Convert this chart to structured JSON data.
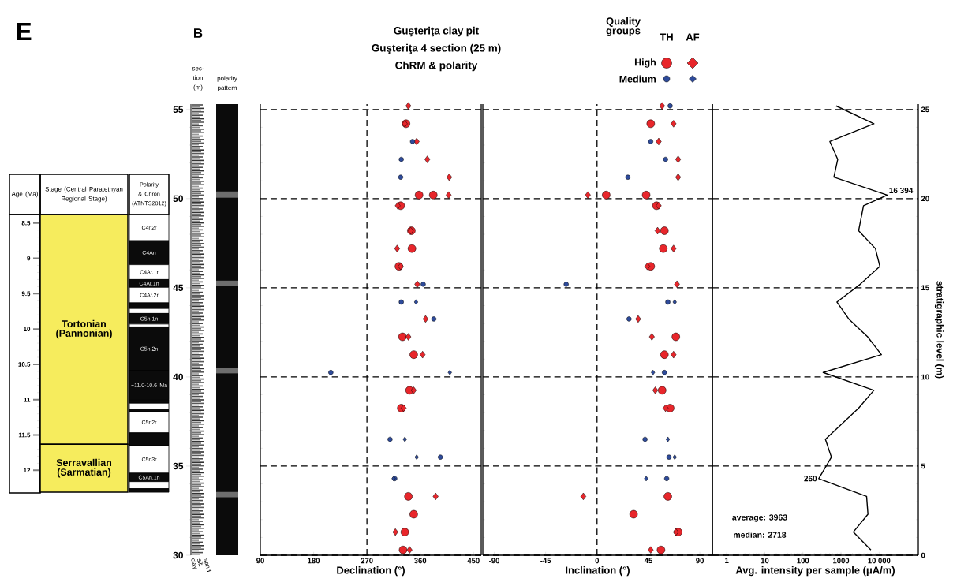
{
  "chart_data": [
    {
      "type": "bar",
      "ylabel": "Age (Ma)",
      "annotations": [
        "E"
      ],
      "categories": [
        "Stage (Central Paratethyan Regional Stage)",
        "Polarity & Chron (ATNTS2012)"
      ],
      "ylim": [
        12.32,
        8.38
      ],
      "yticks": [
        8.5,
        9,
        9.5,
        10,
        10.5,
        11,
        11.5,
        12
      ],
      "series": [
        {
          "name": "Tortonian (Pannonian)",
          "color": "#f6ec5d",
          "values": [
            3.25,
            null
          ],
          "base": [
            8.38,
            null
          ]
        },
        {
          "name": "Serravallian (Sarmatian)",
          "color": "#f6ec5d",
          "values": [
            0.68,
            null
          ],
          "base": [
            11.63,
            null
          ]
        },
        {
          "name": "C4r.2r",
          "color": "#ffffff",
          "values": [
            null,
            0.37
          ],
          "base": [
            null,
            8.38
          ]
        },
        {
          "name": "C4An",
          "color": "#0b0b0b",
          "values": [
            null,
            0.34
          ],
          "base": [
            null,
            8.75
          ]
        },
        {
          "name": "C4Ar.1r",
          "color": "#ffffff",
          "values": [
            null,
            0.21
          ],
          "base": [
            null,
            9.09
          ]
        },
        {
          "name": "C4Ar.1n",
          "color": "#0b0b0b",
          "values": [
            null,
            0.11
          ],
          "base": [
            null,
            9.3
          ]
        },
        {
          "name": "C4Ar.2r",
          "color": "#ffffff",
          "values": [
            null,
            0.22
          ],
          "base": [
            null,
            9.41
          ]
        },
        {
          "color": "#0b0b0b",
          "values": [
            null,
            0.08
          ],
          "base": [
            null,
            9.63
          ]
        },
        {
          "color": "#ffffff",
          "values": [
            null,
            0.07
          ],
          "base": [
            null,
            9.71
          ]
        },
        {
          "name": "C5n.1n",
          "color": "#0b0b0b",
          "values": [
            null,
            0.15
          ],
          "base": [
            null,
            9.78
          ]
        },
        {
          "color": "#ffffff",
          "values": [
            null,
            0.04
          ],
          "base": [
            null,
            9.93
          ]
        },
        {
          "name": "C5n.2n",
          "color": "#0b0b0b",
          "values": [
            null,
            0.62
          ],
          "base": [
            null,
            9.97
          ]
        },
        {
          "name": "~11.0-10.6 Ma",
          "color": "#0b0b0b",
          "values": [
            null,
            0.41
          ],
          "base": [
            null,
            10.59
          ]
        },
        {
          "color": "#0b0b0b",
          "values": [
            null,
            0.05
          ],
          "base": [
            null,
            11.0
          ]
        },
        {
          "color": "#ffffff",
          "values": [
            null,
            0.09
          ],
          "base": [
            null,
            11.05
          ]
        },
        {
          "color": "#0b0b0b",
          "values": [
            null,
            0.03
          ],
          "base": [
            null,
            11.14
          ]
        },
        {
          "name": "C5r.2r",
          "color": "#ffffff",
          "values": [
            null,
            0.3
          ],
          "base": [
            null,
            11.17
          ]
        },
        {
          "color": "#0b0b0b",
          "values": [
            null,
            0.18
          ],
          "base": [
            null,
            11.47
          ]
        },
        {
          "name": "C5r.3r",
          "color": "#ffffff",
          "values": [
            null,
            0.39
          ],
          "base": [
            null,
            11.65
          ]
        },
        {
          "name": "C5An.1n",
          "color": "#0b0b0b",
          "values": [
            null,
            0.12
          ],
          "base": [
            null,
            12.04
          ]
        },
        {
          "color": "#ffffff",
          "values": [
            null,
            0.1
          ],
          "base": [
            null,
            12.16
          ]
        },
        {
          "color": "#0b0b0b",
          "values": [
            null,
            0.05
          ],
          "base": [
            null,
            12.26
          ]
        }
      ]
    },
    {
      "type": "bar",
      "title": "polarity pattern",
      "ylabel": "sec-tion (m)",
      "annotations": [
        "B",
        "clay",
        "silt",
        "sand"
      ],
      "categories": [
        null
      ],
      "ylim": [
        30,
        55.3
      ],
      "yticks": [
        30,
        35,
        40,
        45,
        50,
        55
      ],
      "series": [
        {
          "color": "#0b0b0b",
          "values": [
            25.3
          ],
          "base": [
            30
          ]
        },
        {
          "color": "#6e6e6e",
          "values": [
            0.3
          ],
          "base": [
            33.25
          ]
        },
        {
          "color": "#6e6e6e",
          "values": [
            0.3
          ],
          "base": [
            40.2
          ]
        },
        {
          "color": "#6e6e6e",
          "values": [
            0.3
          ],
          "base": [
            45.1
          ]
        },
        {
          "color": "#6e6e6e",
          "values": [
            0.35
          ],
          "base": [
            50.05
          ]
        }
      ]
    },
    {
      "type": "scatter",
      "title": "Guşteriţa clay pit",
      "subtitle": "Guşteriţa 4 section (25 m)",
      "annotations": [
        "ChRM & polarity",
        "TH",
        "AF"
      ],
      "xlabel": "Declination (°)",
      "legend": "top right",
      "legend_title": "Quality groups",
      "xlim": [
        90,
        463
      ],
      "xticks": [
        90,
        180,
        270,
        360,
        450
      ],
      "ylim": [
        0,
        25.3
      ],
      "yticks": [
        0,
        5,
        10,
        15,
        20,
        25
      ],
      "tick_labels": "x",
      "grid": "y",
      "ref_lines": [
        {
          "axis": "x",
          "value": 270,
          "line_style": "dashed"
        }
      ],
      "series": [
        {
          "name": "High",
          "color": "#e8262b",
          "marker": "circle",
          "x": [
            336,
            358,
            382,
            327,
            345,
            346,
            324,
            330,
            349,
            342,
            328,
            340,
            349,
            334,
            331
          ],
          "values": [
            24.2,
            20.2,
            20.2,
            19.6,
            18.2,
            17.2,
            16.2,
            12.25,
            11.25,
            9.25,
            8.25,
            3.3,
            2.3,
            1.3,
            0.3
          ]
        },
        {
          "color": "#e8262b",
          "marker": "diamond",
          "x": [
            340,
            334,
            354,
            372,
            409,
            408,
            322,
            344,
            321,
            327,
            355,
            369,
            340,
            364,
            349,
            332,
            386,
            318,
            342
          ],
          "values": [
            25.2,
            24.2,
            23.2,
            22.2,
            21.2,
            20.2,
            19.6,
            18.2,
            17.2,
            16.2,
            15.2,
            13.25,
            12.25,
            11.25,
            9.25,
            8.25,
            3.3,
            1.3,
            0.3
          ]
        },
        {
          "name": "Medium",
          "color": "#2e4b9b",
          "marker": "circle",
          "x": [
            347,
            328,
            327,
            365,
            328,
            383,
            209,
            309,
            394,
            317
          ],
          "values": [
            23.2,
            22.2,
            21.2,
            15.2,
            14.2,
            13.25,
            10.25,
            6.5,
            5.5,
            4.3
          ]
        },
        {
          "color": "#2e4b9b",
          "marker": "diamond",
          "x": [
            353,
            410,
            334,
            354,
            315
          ],
          "values": [
            14.2,
            10.25,
            6.5,
            5.5,
            4.3
          ]
        }
      ]
    },
    {
      "type": "scatter",
      "xlabel": "Inclination (°)",
      "xlim": [
        -100,
        101
      ],
      "xticks": [
        -90,
        -45,
        0,
        45,
        90
      ],
      "ylim": [
        0,
        25.3
      ],
      "yticks": [
        0,
        5,
        10,
        15,
        20,
        25
      ],
      "tick_labels": "x",
      "grid": "y",
      "ref_lines": [
        {
          "axis": "x",
          "value": 0,
          "line_style": "dashed"
        }
      ],
      "series": [
        {
          "color": "#e8262b",
          "marker": "circle",
          "x": [
            47,
            8,
            43,
            52,
            59,
            58,
            47,
            69,
            59,
            57,
            64,
            62,
            32,
            71,
            56
          ],
          "values": [
            24.2,
            20.2,
            20.2,
            19.6,
            18.2,
            17.2,
            16.2,
            12.25,
            11.25,
            9.25,
            8.25,
            3.3,
            2.3,
            1.3,
            0.3
          ]
        },
        {
          "color": "#e8262b",
          "marker": "diamond",
          "x": [
            57,
            67,
            54,
            71,
            71,
            -8,
            54,
            53,
            67,
            44,
            70,
            36,
            48,
            67,
            51,
            60,
            -12,
            69,
            47
          ],
          "values": [
            25.2,
            24.2,
            23.2,
            22.2,
            21.2,
            20.2,
            19.6,
            18.2,
            17.2,
            16.2,
            15.2,
            13.25,
            12.25,
            11.25,
            9.25,
            8.25,
            3.3,
            1.3,
            0.3
          ]
        },
        {
          "color": "#2e4b9b",
          "marker": "circle",
          "x": [
            64,
            47,
            60,
            27,
            -27,
            62,
            28,
            59,
            42,
            63,
            61
          ],
          "values": [
            25.2,
            23.2,
            22.2,
            21.2,
            15.2,
            14.2,
            13.25,
            10.25,
            6.5,
            5.5,
            4.3
          ]
        },
        {
          "color": "#2e4b9b",
          "marker": "diamond",
          "x": [
            68,
            49,
            62,
            68,
            43
          ],
          "values": [
            14.2,
            10.25,
            6.5,
            5.5,
            4.3
          ]
        }
      ]
    },
    {
      "type": "line",
      "xlabel": "Avg. intensity per sample (μA/m)",
      "ylabel": "stratigraphic level (m)",
      "log": "x",
      "xlim": [
        0.42,
        107000
      ],
      "xticks": [
        1,
        10,
        100,
        1000,
        {
          "value": 10000,
          "label": "10 000"
        }
      ],
      "ylim": [
        0,
        25.3
      ],
      "yticks": [
        0,
        5,
        10,
        15,
        20,
        25
      ],
      "grid": "y",
      "annotations": [
        {
          "text": "16 394",
          "x": 16394,
          "y": 20.2
        },
        {
          "text": "260",
          "x": 260,
          "y": 4.3
        },
        "average: 3963",
        "median: 2718"
      ],
      "series": [
        {
          "color": "#000000",
          "x": [
            740,
            7300,
            510,
            820,
            650,
            16394,
            3900,
            2900,
            8000,
            10500,
            3200,
            780,
            1600,
            5000,
            11500,
            340,
            7300,
            2900,
            390,
            560,
            260,
            4700,
            5100,
            2100,
            6100
          ],
          "values": [
            25.2,
            24.2,
            23.2,
            22.2,
            21.2,
            20.2,
            19.6,
            18.2,
            17.2,
            16.2,
            15.2,
            14.2,
            13.25,
            12.25,
            11.25,
            10.25,
            9.25,
            8.25,
            6.5,
            5.5,
            4.3,
            3.3,
            2.3,
            1.3,
            0.3
          ]
        }
      ]
    }
  ]
}
